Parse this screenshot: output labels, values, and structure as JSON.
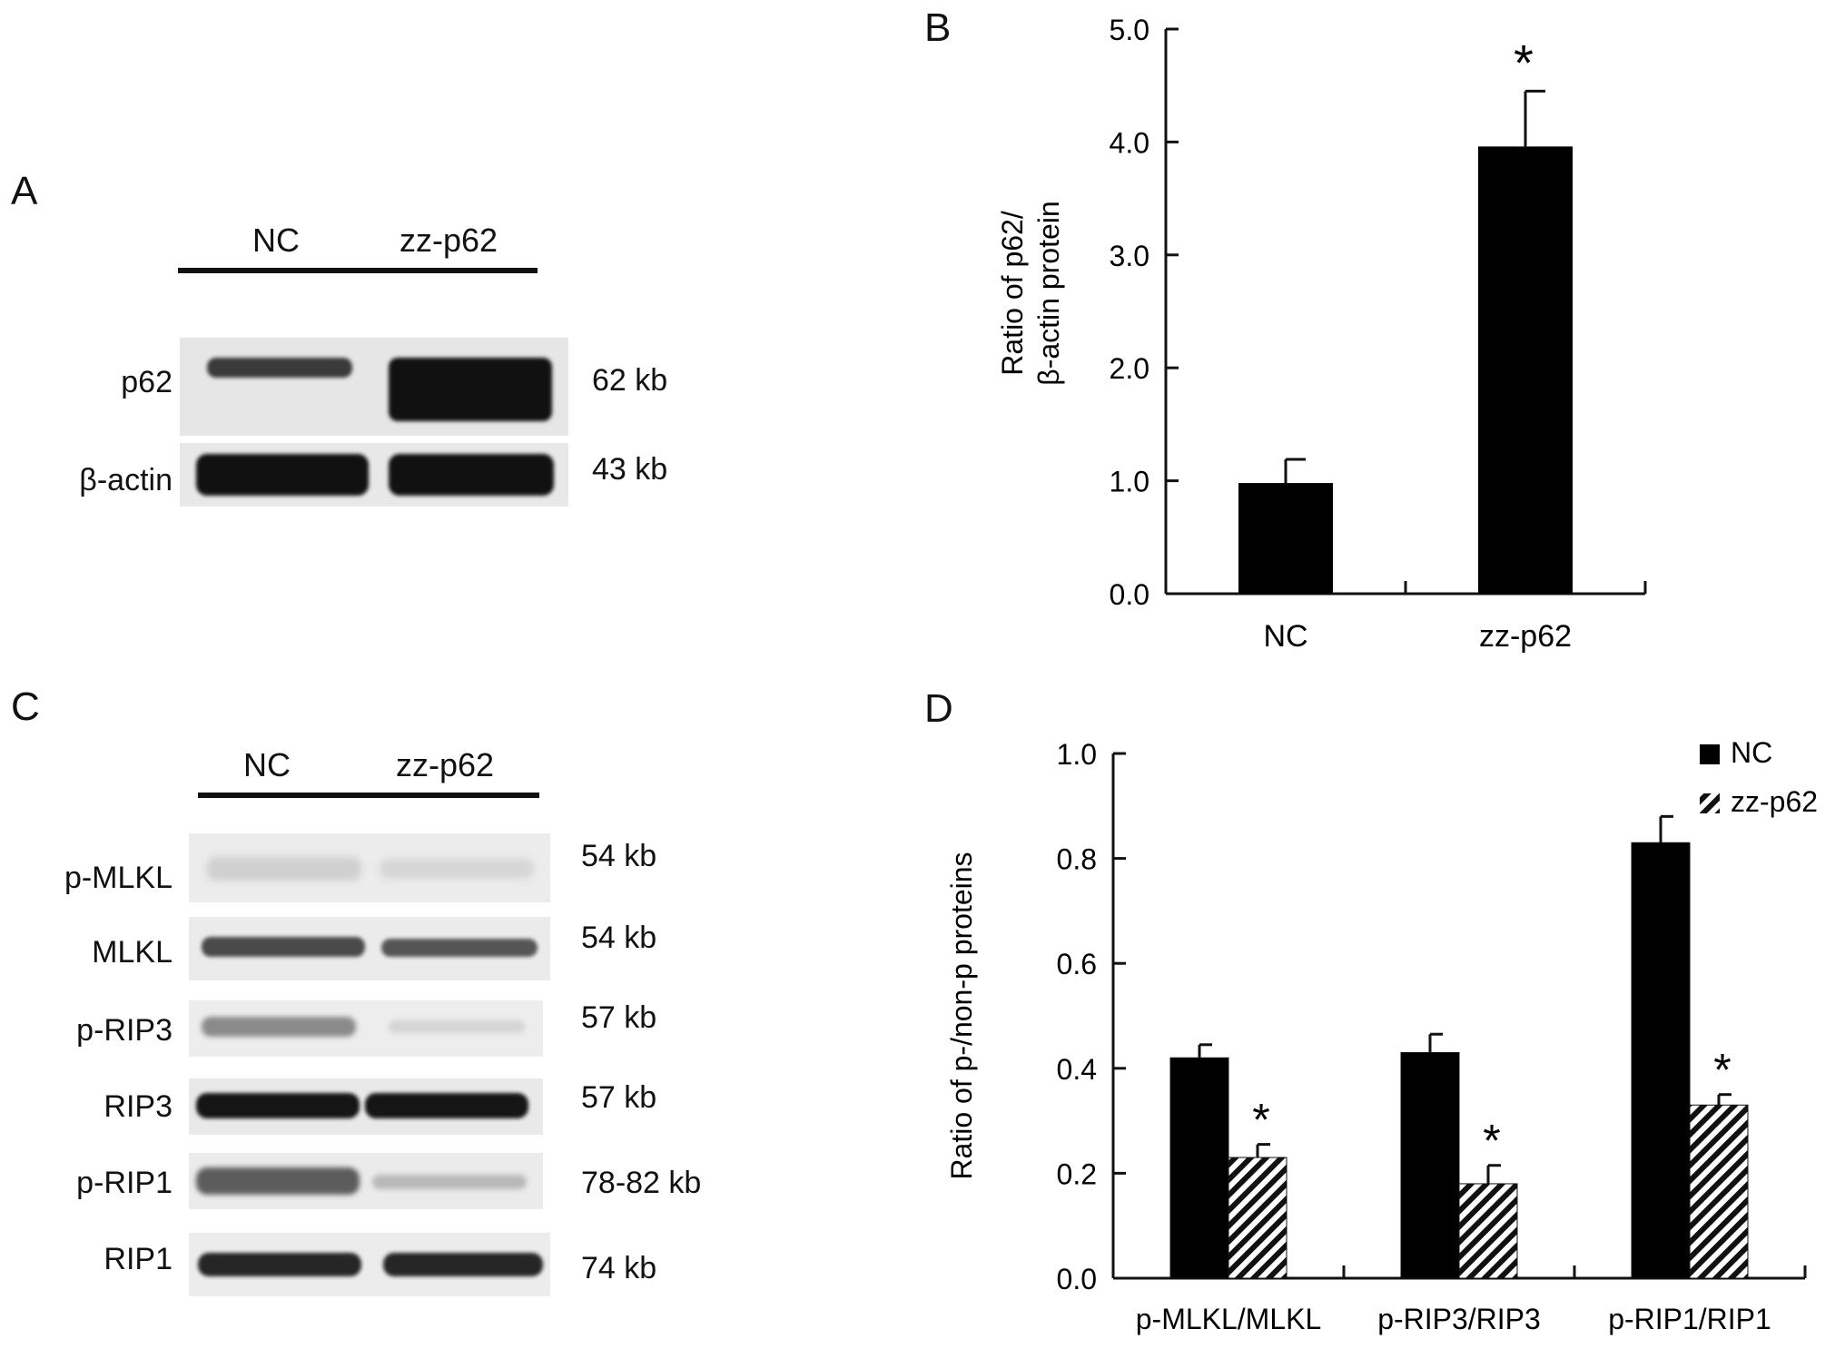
{
  "panels": {
    "a": {
      "letter": "A",
      "lanes": [
        "NC",
        "zz-p62"
      ],
      "rows": [
        {
          "label": "p62",
          "size": "62 kb"
        },
        {
          "label": "β-actin",
          "size": "43 kb"
        }
      ]
    },
    "b": {
      "letter": "B"
    },
    "c": {
      "letter": "C",
      "lanes": [
        "NC",
        "zz-p62"
      ],
      "rows": [
        {
          "label": "p-MLKL",
          "size": "54 kb"
        },
        {
          "label": "MLKL",
          "size": "54 kb"
        },
        {
          "label": "p-RIP3",
          "size": "57 kb"
        },
        {
          "label": "RIP3",
          "size": "57 kb"
        },
        {
          "label": "p-RIP1",
          "size": "78-82 kb"
        },
        {
          "label": "RIP1",
          "size": "74 kb"
        }
      ]
    },
    "d": {
      "letter": "D"
    }
  },
  "chart_data": [
    {
      "type": "bar",
      "panel": "B",
      "categories": [
        "NC",
        "zz-p62"
      ],
      "values": [
        0.98,
        3.96
      ],
      "errors": [
        0.21,
        0.49
      ],
      "ylabel_lines": [
        "Ratio of p62/",
        "β-actin protein"
      ],
      "yticks": [
        "0.0",
        "1.0",
        "2.0",
        "3.0",
        "4.0",
        "5.0"
      ],
      "ylim": [
        0,
        5
      ],
      "significance": [
        "",
        "*"
      ],
      "bar_color": "#000000"
    },
    {
      "type": "bar",
      "panel": "D",
      "categories": [
        "p-MLKL/MLKL",
        "p-RIP3/RIP3",
        "p-RIP1/RIP1"
      ],
      "series": [
        {
          "name": "NC",
          "values": [
            0.42,
            0.43,
            0.83
          ],
          "errors": [
            0.025,
            0.035,
            0.05
          ],
          "fill": "solid"
        },
        {
          "name": "zz-p62",
          "values": [
            0.23,
            0.18,
            0.33
          ],
          "errors": [
            0.025,
            0.035,
            0.02
          ],
          "fill": "hatched",
          "significance": [
            "*",
            "*",
            "*"
          ]
        }
      ],
      "ylabel": "Ratio of p-/non-p proteins",
      "yticks": [
        "0.0",
        "0.2",
        "0.4",
        "0.6",
        "0.8",
        "1.0"
      ],
      "ylim": [
        0,
        1.0
      ],
      "legend_position": "top-right",
      "colors": {
        "solid": "#000000",
        "hatch": "#000000"
      }
    }
  ]
}
